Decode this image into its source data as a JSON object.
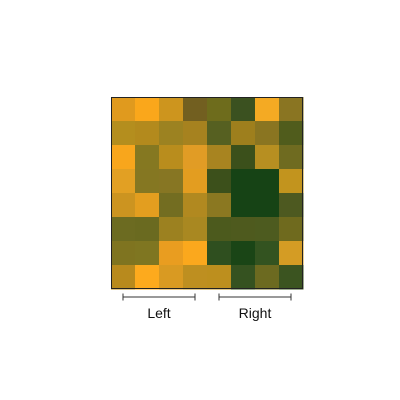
{
  "chart_data": {
    "type": "heatmap",
    "rows": 8,
    "cols": 8,
    "cell_colors": [
      [
        "#e09a1e",
        "#faa71b",
        "#cd951e",
        "#725f20",
        "#6e6c1c",
        "#3b5120",
        "#f4aa23",
        "#8a7522"
      ],
      [
        "#b48e1e",
        "#b38a1d",
        "#9c8221",
        "#a6821f",
        "#566021",
        "#9e7f1d",
        "#8a7521",
        "#505c1c"
      ],
      [
        "#f8a61c",
        "#857821",
        "#b98d1d",
        "#e19c25",
        "#a88420",
        "#3b501b",
        "#b78f21",
        "#6f6b20"
      ],
      [
        "#e2a023",
        "#857722",
        "#877623",
        "#e39d20",
        "#3c501b",
        "#164315",
        "#164315",
        "#c2941e"
      ],
      [
        "#cc9420",
        "#e39e1f",
        "#736d21",
        "#b18920",
        "#8b7821",
        "#164315",
        "#164315",
        "#4d5920"
      ],
      [
        "#6c6b21",
        "#6a6a20",
        "#9c8120",
        "#a98821",
        "#4c5a1d",
        "#4e5a1e",
        "#4d5b1f",
        "#6f6a1e"
      ],
      [
        "#7f7420",
        "#7f7621",
        "#e99d20",
        "#fba81d",
        "#2f4f1f",
        "#1a4516",
        "#335320",
        "#d49c24"
      ],
      [
        "#b88a1d",
        "#fdaa1d",
        "#d99a22",
        "#be8f20",
        "#bd8f1e",
        "#355220",
        "#6c6a20",
        "#3b5420"
      ]
    ],
    "groups": [
      {
        "label": "Left",
        "col_start": 0,
        "col_end": 3
      },
      {
        "label": "Right",
        "col_start": 4,
        "col_end": 7
      }
    ],
    "border_color": "#222222"
  }
}
